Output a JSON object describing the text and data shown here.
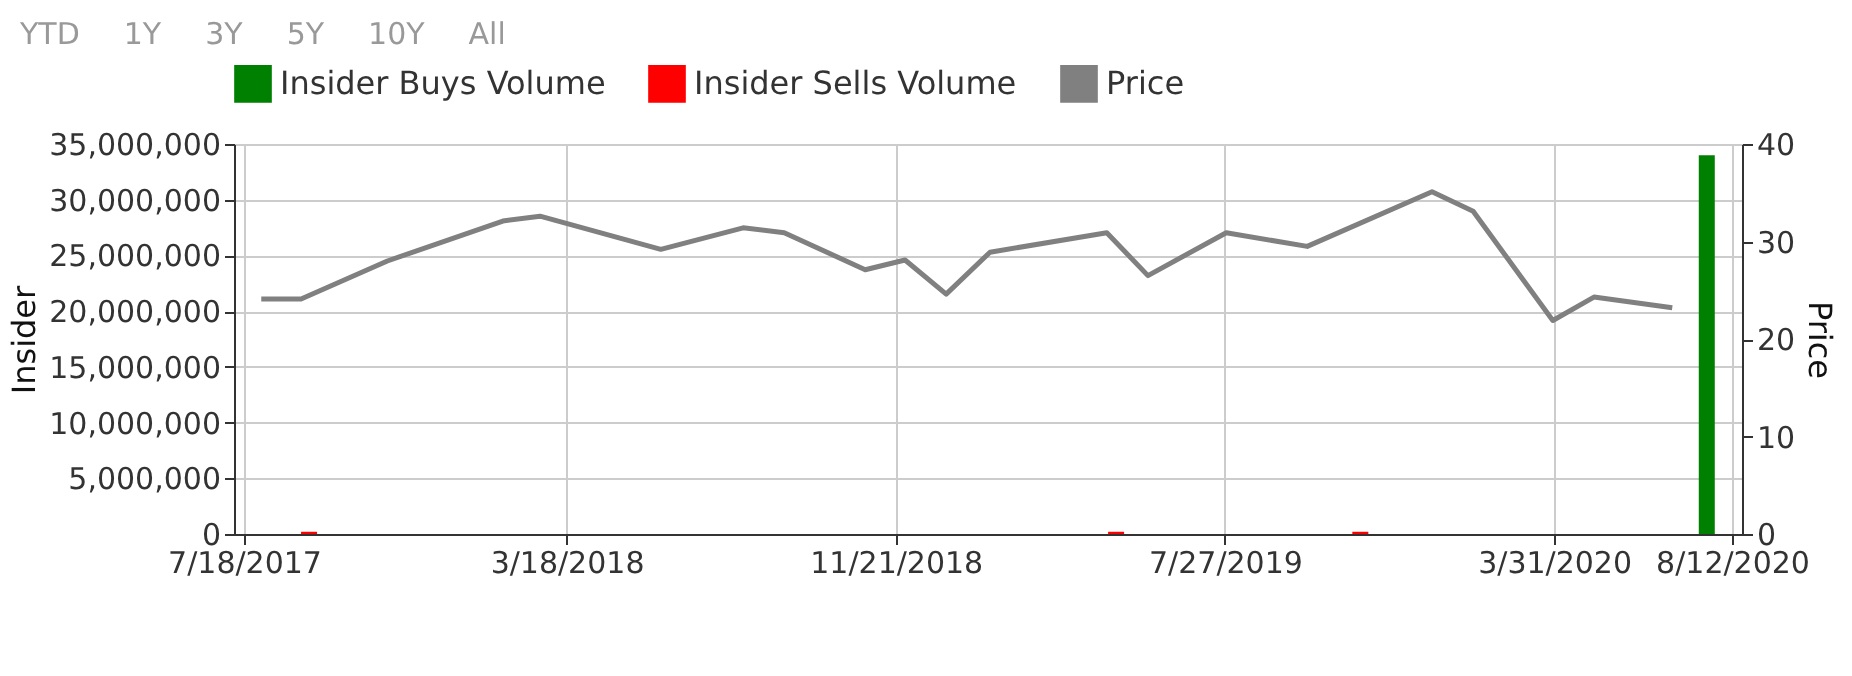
{
  "chart_data": {
    "type": "bar",
    "ylabel": "Insider",
    "y2label": "Price",
    "annotations": [
      "YTD",
      "1Y",
      "3Y",
      "5Y",
      "10Y",
      "All"
    ],
    "series": [
      {
        "name": "Insider Buys Volume",
        "color": "#008000",
        "x": [
          "2020-07-24"
        ],
        "values": [
          34000000
        ]
      },
      {
        "name": "Insider Sells Volume",
        "color": "#ff0000",
        "x": [
          "2017-09-05",
          "2019-05-06",
          "2019-11-06"
        ],
        "values": [
          200000,
          200000,
          200000
        ]
      },
      {
        "name": "Price",
        "type": "line",
        "axis": "y2",
        "color": "#808080",
        "x": [
          "2017-07-31",
          "2017-08-30",
          "2017-11-03",
          "2018-01-29",
          "2018-02-26",
          "2018-05-28",
          "2018-07-29",
          "2018-08-29",
          "2018-10-29",
          "2018-11-28",
          "2018-12-29",
          "2019-01-31",
          "2019-04-29",
          "2019-05-30",
          "2019-07-28",
          "2019-09-27",
          "2019-12-30",
          "2020-01-30",
          "2020-03-30",
          "2020-04-30",
          "2020-06-28"
        ],
        "values": [
          24.1,
          24.1,
          28.0,
          32.1,
          32.6,
          29.2,
          31.4,
          30.9,
          27.1,
          28.1,
          24.6,
          28.9,
          30.9,
          26.5,
          30.9,
          29.5,
          35.1,
          33.1,
          21.9,
          24.3,
          23.2
        ]
      }
    ],
    "xlim": [
      "2017-07-18",
      "2020-08-12"
    ],
    "xticks": [
      {
        "value": "2017-07-18",
        "label": "7/18/2017"
      },
      {
        "value": "2018-03-18",
        "label": "3/18/2018"
      },
      {
        "value": "2018-11-21",
        "label": "11/21/2018"
      },
      {
        "value": "2019-07-27",
        "label": "7/27/2019"
      },
      {
        "value": "2020-03-31",
        "label": "3/31/2020"
      },
      {
        "value": "2020-08-12",
        "label": "8/12/2020"
      }
    ],
    "ylim": [
      0,
      35000000
    ],
    "yticks": [
      0,
      {
        "value": 5000000,
        "label": "5,000,000"
      },
      {
        "value": 10000000,
        "label": "10,000,000"
      },
      {
        "value": 15000000,
        "label": "15,000,000"
      },
      {
        "value": 20000000,
        "label": "20,000,000"
      },
      {
        "value": 25000000,
        "label": "25,000,000"
      },
      {
        "value": 30000000,
        "label": "30,000,000"
      },
      {
        "value": 35000000,
        "label": "35,000,000"
      }
    ],
    "y2lim": [
      0,
      40
    ],
    "y2ticks": [
      0,
      10,
      20,
      30,
      40
    ],
    "grid": true,
    "legend": "top"
  }
}
